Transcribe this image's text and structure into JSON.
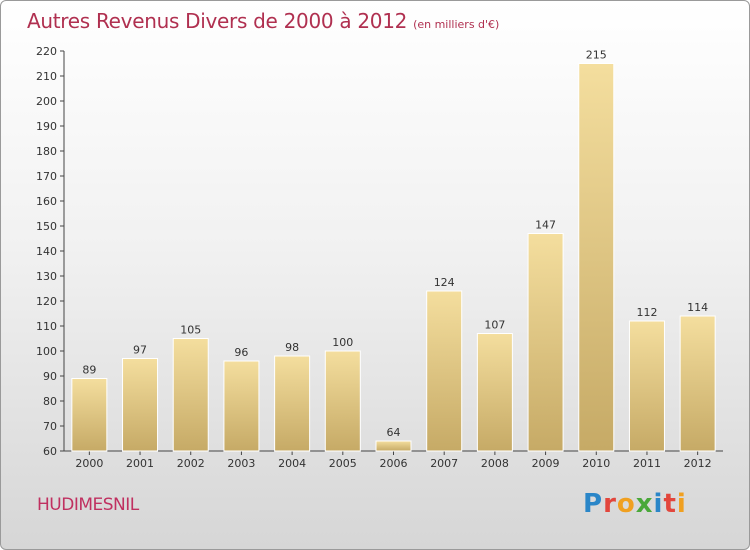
{
  "header": {
    "title": "Autres Revenus Divers de 2000 à 2012",
    "unit": "(en milliers d'€)"
  },
  "footer": {
    "commune": "HUDIMESNIL",
    "logo": "Proxiti"
  },
  "colors": {
    "title": "#b03050",
    "bar_light": "#f3dc9c",
    "bar_dark": "#c8ac68"
  },
  "chart_data": {
    "type": "bar",
    "title": "Autres Revenus Divers de 2000 à 2012",
    "subtitle": "(en milliers d'€)",
    "xlabel": "",
    "ylabel": "",
    "categories": [
      "2000",
      "2001",
      "2002",
      "2003",
      "2004",
      "2005",
      "2006",
      "2007",
      "2008",
      "2009",
      "2010",
      "2011",
      "2012"
    ],
    "values": [
      89,
      97,
      105,
      96,
      98,
      100,
      64,
      124,
      107,
      147,
      215,
      112,
      114
    ],
    "ylim": [
      60,
      220
    ],
    "yticks": [
      60,
      70,
      80,
      90,
      100,
      110,
      120,
      130,
      140,
      150,
      160,
      170,
      180,
      190,
      200,
      210,
      220
    ],
    "grid": false,
    "legend": "none"
  }
}
